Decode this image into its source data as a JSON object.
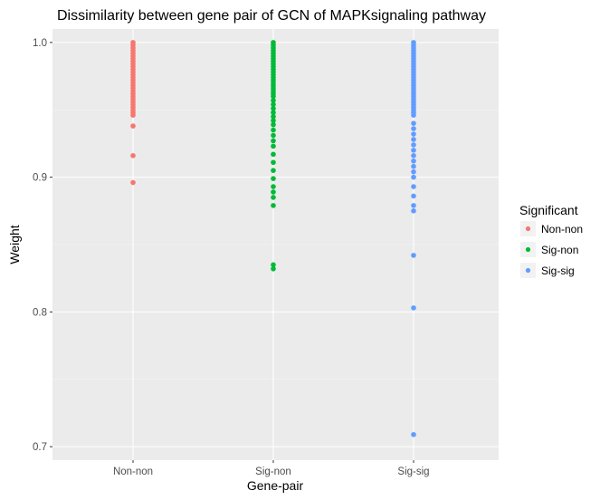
{
  "chart_data": {
    "type": "scatter",
    "title": "Dissimilarity between gene pair of GCN of MAPKsignaling pathway",
    "xlabel": "Gene-pair",
    "ylabel": "Weight",
    "categories": [
      "Non-non",
      "Sig-non",
      "Sig-sig"
    ],
    "ylim": [
      0.69,
      1.01
    ],
    "yticks": [
      0.7,
      0.8,
      0.9,
      1.0
    ],
    "ytick_labels": [
      "0.7",
      "0.8",
      "0.9",
      "1.0"
    ],
    "grid": true,
    "legend": {
      "title": "Significant",
      "position": "right",
      "entries": [
        "Non-non",
        "Sig-non",
        "Sig-sig"
      ]
    },
    "series": [
      {
        "name": "Non-non",
        "category": "Non-non",
        "color": "#F8766D",
        "values": [
          1.0,
          0.998,
          0.996,
          0.994,
          0.992,
          0.99,
          0.988,
          0.986,
          0.984,
          0.982,
          0.98,
          0.978,
          0.976,
          0.974,
          0.972,
          0.97,
          0.968,
          0.966,
          0.964,
          0.962,
          0.96,
          0.958,
          0.956,
          0.954,
          0.952,
          0.95,
          0.948,
          0.946,
          0.938,
          0.916,
          0.896
        ]
      },
      {
        "name": "Sig-non",
        "category": "Sig-non",
        "color": "#00BA38",
        "values": [
          1.0,
          0.998,
          0.996,
          0.994,
          0.992,
          0.99,
          0.988,
          0.986,
          0.984,
          0.982,
          0.98,
          0.978,
          0.976,
          0.974,
          0.972,
          0.97,
          0.968,
          0.966,
          0.964,
          0.962,
          0.96,
          0.957,
          0.954,
          0.951,
          0.948,
          0.945,
          0.942,
          0.939,
          0.935,
          0.931,
          0.927,
          0.923,
          0.917,
          0.911,
          0.905,
          0.899,
          0.893,
          0.889,
          0.885,
          0.879,
          0.835,
          0.832
        ]
      },
      {
        "name": "Sig-sig",
        "category": "Sig-sig",
        "color": "#619CFF",
        "values": [
          1.0,
          0.998,
          0.996,
          0.994,
          0.992,
          0.99,
          0.988,
          0.986,
          0.984,
          0.982,
          0.98,
          0.978,
          0.976,
          0.974,
          0.972,
          0.97,
          0.968,
          0.966,
          0.964,
          0.962,
          0.96,
          0.958,
          0.956,
          0.954,
          0.952,
          0.95,
          0.948,
          0.946,
          0.94,
          0.936,
          0.932,
          0.928,
          0.924,
          0.92,
          0.916,
          0.912,
          0.908,
          0.904,
          0.9,
          0.893,
          0.886,
          0.879,
          0.875,
          0.842,
          0.803,
          0.709
        ]
      }
    ]
  }
}
